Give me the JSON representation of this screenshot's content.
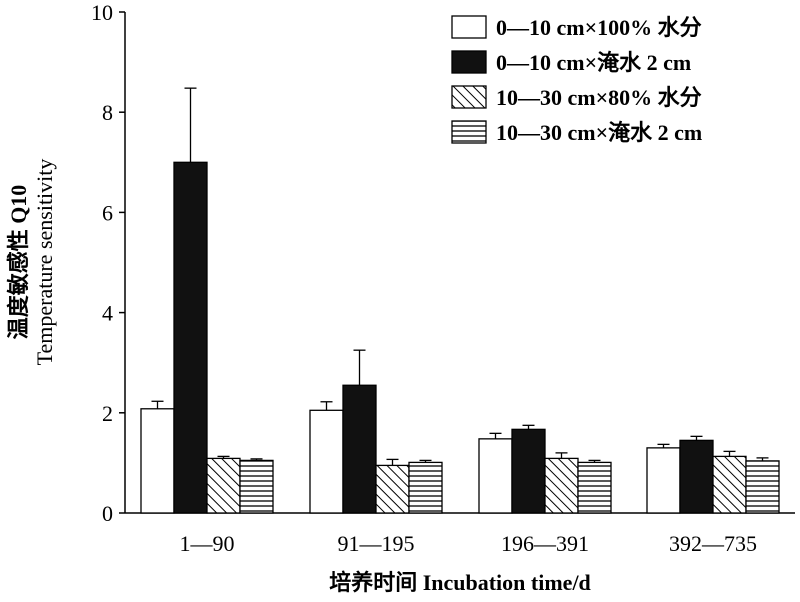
{
  "chart_data": {
    "type": "bar",
    "categories": [
      "1—90",
      "91—195",
      "196—391",
      "392—735"
    ],
    "series": [
      {
        "name": "0—10 cm×100% 水分",
        "values": [
          2.08,
          2.05,
          1.48,
          1.3
        ],
        "errors": [
          0.15,
          0.17,
          0.11,
          0.07
        ],
        "style": "white"
      },
      {
        "name": "0—10 cm×淹水 2 cm",
        "values": [
          7.0,
          2.55,
          1.67,
          1.45
        ],
        "errors": [
          1.48,
          0.7,
          0.08,
          0.08
        ],
        "style": "black"
      },
      {
        "name": "10—30 cm×80% 水分",
        "values": [
          1.09,
          0.95,
          1.09,
          1.13
        ],
        "errors": [
          0.04,
          0.12,
          0.11,
          0.1
        ],
        "style": "diagonal"
      },
      {
        "name": "10—30 cm×淹水 2 cm",
        "values": [
          1.05,
          1.01,
          1.01,
          1.04
        ],
        "errors": [
          0.03,
          0.04,
          0.04,
          0.06
        ],
        "style": "horizontal"
      }
    ],
    "ylabel_line1": "温度敏感性 Q10",
    "ylabel_line2": "Temperature sensitivity",
    "xlabel": "培养时间 Incubation time/d",
    "ylim": [
      0,
      10
    ],
    "yticks": [
      "0",
      "2",
      "4",
      "6",
      "8",
      "10"
    ],
    "legend_position": "top-right",
    "grid": false
  }
}
